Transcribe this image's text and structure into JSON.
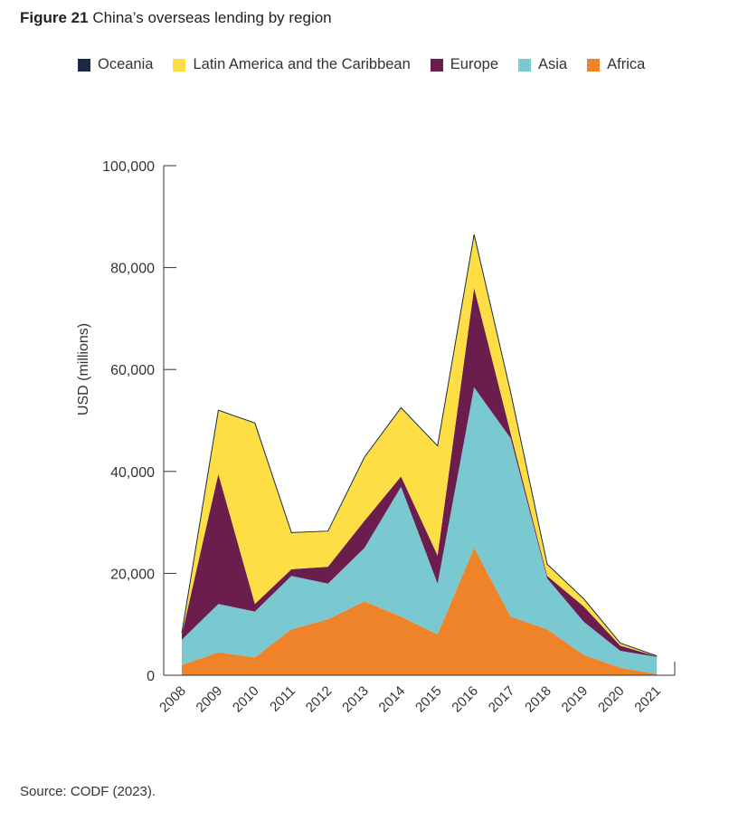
{
  "figure": {
    "number_label": "Figure 21",
    "title": "China’s overseas lending by region"
  },
  "source": "Source: CODF (2023).",
  "chart_data": {
    "type": "area",
    "stacked": true,
    "title": "China’s overseas lending by region",
    "xlabel": "",
    "ylabel": "USD (millions)",
    "ylim": [
      0,
      100000
    ],
    "yticks": [
      0,
      20000,
      40000,
      60000,
      80000,
      100000
    ],
    "ytick_labels": [
      "0",
      "20,000",
      "40,000",
      "60,000",
      "80,000",
      "100,000"
    ],
    "grid": false,
    "legend_position": "top",
    "categories": [
      "2008",
      "2009",
      "2010",
      "2011",
      "2012",
      "2013",
      "2014",
      "2015",
      "2016",
      "2017",
      "2018",
      "2019",
      "2020",
      "2021"
    ],
    "series": [
      {
        "name": "Africa",
        "color": "#EE8329",
        "values": [
          2000,
          4500,
          3500,
          9000,
          11000,
          14500,
          11500,
          8000,
          25000,
          11500,
          9000,
          4000,
          1500,
          200
        ]
      },
      {
        "name": "Asia",
        "color": "#7AC8D0",
        "values": [
          5000,
          9500,
          9000,
          10500,
          7000,
          10500,
          25500,
          10000,
          31500,
          35000,
          10000,
          6500,
          3300,
          3400
        ]
      },
      {
        "name": "Europe",
        "color": "#6B1E4E",
        "values": [
          1000,
          25500,
          1500,
          1300,
          3300,
          5300,
          2000,
          5500,
          19500,
          1000,
          500,
          3000,
          1000,
          100
        ]
      },
      {
        "name": "Latin America and the Caribbean",
        "color": "#FDDF45",
        "values": [
          300,
          12500,
          35500,
          7200,
          7000,
          12500,
          13500,
          21500,
          10500,
          8000,
          2300,
          1500,
          500,
          100
        ]
      },
      {
        "name": "Oceania",
        "color": "#1A2A44",
        "values": [
          0,
          0,
          0,
          0,
          0,
          0,
          0,
          0,
          0,
          0,
          0,
          0,
          0,
          0
        ]
      }
    ],
    "legend_order": [
      "Oceania",
      "Latin America and the Caribbean",
      "Europe",
      "Asia",
      "Africa"
    ]
  }
}
